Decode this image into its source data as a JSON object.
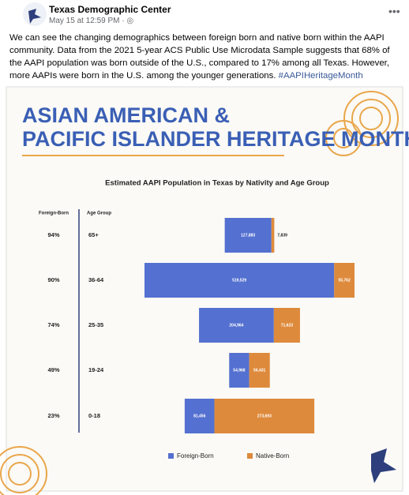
{
  "post": {
    "author": "Texas Demographic Center",
    "timestamp": "May 15 at 12:59 PM · ",
    "text": "We can see the changing demographics between foreign born and native born within the AAPI community. Data from the 2021 5-year ACS Public Use Microdata Sample suggests that 68% of the AAPI population was born outside of the U.S., compared to 17% among all Texas. However, more AAPIs were born in the U.S. among the younger generations. ",
    "hashtag": "#AAPIHeritageMonth",
    "banner": [
      "ASIAN AMERICAN &",
      "PACIFIC ISLANDER HERITAGE MONTH"
    ]
  },
  "chart_data": {
    "type": "bar",
    "orientation": "horizontal",
    "stacked": "centered",
    "title": "Estimated AAPI Population in Texas by Nativity and Age Group",
    "column_headers": [
      "Foreign-Born",
      "Age Group"
    ],
    "foreign_born_share": [
      "94%",
      "90%",
      "74%",
      "49%",
      "23%"
    ],
    "categories": [
      "65+",
      "36-64",
      "25-35",
      "19-24",
      "0-18"
    ],
    "series": [
      {
        "name": "Foreign-Born",
        "color": "#5470d0",
        "values": [
          127883,
          519529,
          204964,
          54968,
          81456
        ],
        "value_labels": [
          "127,883",
          "519,529",
          "204,964",
          "54,968",
          "81,456"
        ]
      },
      {
        "name": "Native-Born",
        "color": "#de8a3c",
        "values": [
          7839,
          55762,
          71623,
          56431,
          273693
        ],
        "value_labels": [
          "7,839",
          "55,762",
          "71,623",
          "56,431",
          "273,693"
        ]
      }
    ],
    "legend": "bottom"
  }
}
